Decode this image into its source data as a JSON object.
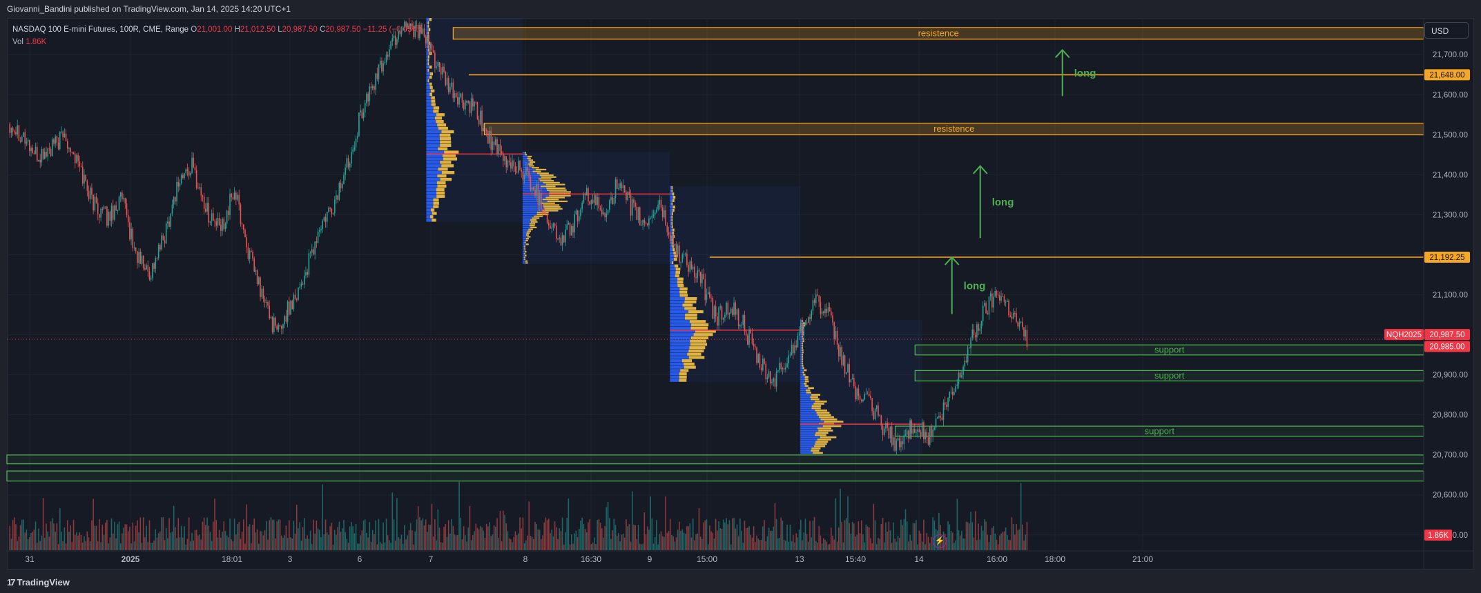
{
  "header": {
    "published_text": "Giovanni_Bandini published on TradingView.com, Jan 14, 2025 14:20 UTC+1"
  },
  "legend": {
    "symbol_title": "NASDAQ 100 E-mini Futures, 100R, CME, Range",
    "open_label": "O",
    "open_value": "21,001.00",
    "high_label": "H",
    "high_value": "21,012.50",
    "low_label": "L",
    "low_value": "20,987.50",
    "close_label": "C",
    "close_value": "20,987.50",
    "change_text": "−11.25 (−0.05%)",
    "vol_label": "Vol",
    "vol_value": "1.86K"
  },
  "price_axis": {
    "currency_button": "USD",
    "ticks": [
      "21,700.00",
      "21,600.00",
      "21,500.00",
      "21,400.00",
      "21,300.00",
      "21,200.00",
      "21,100.00",
      "21,000.00",
      "20,900.00",
      "20,800.00",
      "20,700.00",
      "20,600.00",
      "20,500.00"
    ],
    "badges": [
      {
        "text": "21,648.00",
        "price": 21648,
        "color": "#f5a623",
        "text_color": "#131722"
      },
      {
        "text": "21,192.25",
        "price": 21192.25,
        "color": "#f5a623",
        "text_color": "#131722"
      },
      {
        "text": "NQH2025",
        "price": 20999,
        "color": "#f23645",
        "text_color": "#ffffff",
        "offset_left": true
      },
      {
        "text": "20,987.50",
        "price": 20999,
        "color": "#f23645",
        "text_color": "#ffffff"
      },
      {
        "text": "20,985.00",
        "price": 20969,
        "color": "#f23645",
        "text_color": "#ffffff"
      }
    ],
    "volume_badge": "1.86K"
  },
  "time_axis": {
    "labels": [
      "31",
      "2025",
      "18:01",
      "3",
      "6",
      "7",
      "8",
      "16:30",
      "9",
      "15:00",
      "13",
      "15:40",
      "14",
      "16:00",
      "18:00",
      "21:00"
    ]
  },
  "footer": {
    "brand": "TradingView",
    "brand_mark": "17"
  },
  "colors": {
    "up": "#26a69a",
    "down": "#ef5350",
    "resistance": "#f5a623",
    "support": "#4caf50",
    "profile_blue": "#2962ff",
    "profile_yellow": "#f5c242",
    "poc": "#f23645",
    "arrow": "#4caf50"
  },
  "chart_data": {
    "type": "candlestick",
    "instrument": "NASDAQ 100 E-mini Futures, 100R, CME, Range",
    "y_range": [
      20460,
      21790
    ],
    "price_ticks": [
      21700,
      21600,
      21500,
      21400,
      21300,
      21200,
      21100,
      21000,
      20900,
      20800,
      20700,
      20600,
      20500
    ],
    "last_price": 20987.5,
    "price_path": [
      [
        0,
        21530
      ],
      [
        0.01,
        21500
      ],
      [
        0.02,
        21440
      ],
      [
        0.03,
        21460
      ],
      [
        0.04,
        21500
      ],
      [
        0.05,
        21420
      ],
      [
        0.06,
        21330
      ],
      [
        0.07,
        21290
      ],
      [
        0.08,
        21340
      ],
      [
        0.09,
        21200
      ],
      [
        0.1,
        21150
      ],
      [
        0.11,
        21240
      ],
      [
        0.12,
        21380
      ],
      [
        0.13,
        21420
      ],
      [
        0.14,
        21310
      ],
      [
        0.15,
        21260
      ],
      [
        0.16,
        21360
      ],
      [
        0.17,
        21200
      ],
      [
        0.18,
        21090
      ],
      [
        0.19,
        21000
      ],
      [
        0.2,
        21080
      ],
      [
        0.21,
        21150
      ],
      [
        0.22,
        21260
      ],
      [
        0.23,
        21320
      ],
      [
        0.24,
        21430
      ],
      [
        0.25,
        21560
      ],
      [
        0.26,
        21640
      ],
      [
        0.27,
        21720
      ],
      [
        0.28,
        21780
      ],
      [
        0.29,
        21760
      ],
      [
        0.3,
        21700
      ],
      [
        0.31,
        21620
      ],
      [
        0.32,
        21580
      ],
      [
        0.33,
        21560
      ],
      [
        0.34,
        21490
      ],
      [
        0.35,
        21430
      ],
      [
        0.36,
        21420
      ],
      [
        0.37,
        21380
      ],
      [
        0.38,
        21300
      ],
      [
        0.39,
        21230
      ],
      [
        0.4,
        21280
      ],
      [
        0.41,
        21350
      ],
      [
        0.42,
        21300
      ],
      [
        0.43,
        21370
      ],
      [
        0.44,
        21320
      ],
      [
        0.45,
        21270
      ],
      [
        0.46,
        21330
      ],
      [
        0.47,
        21220
      ],
      [
        0.48,
        21180
      ],
      [
        0.49,
        21130
      ],
      [
        0.5,
        21040
      ],
      [
        0.51,
        21070
      ],
      [
        0.52,
        21020
      ],
      [
        0.53,
        20930
      ],
      [
        0.54,
        20880
      ],
      [
        0.55,
        20930
      ],
      [
        0.56,
        21010
      ],
      [
        0.57,
        21090
      ],
      [
        0.58,
        21040
      ],
      [
        0.59,
        20930
      ],
      [
        0.6,
        20850
      ],
      [
        0.61,
        20820
      ],
      [
        0.62,
        20760
      ],
      [
        0.63,
        20720
      ],
      [
        0.64,
        20780
      ],
      [
        0.65,
        20740
      ],
      [
        0.66,
        20800
      ],
      [
        0.67,
        20870
      ],
      [
        0.68,
        20980
      ],
      [
        0.69,
        21060
      ],
      [
        0.7,
        21110
      ],
      [
        0.71,
        21050
      ],
      [
        0.72,
        20987
      ]
    ],
    "resistance_zones": [
      {
        "label": "resistence",
        "top": 21766,
        "bottom": 21737,
        "x_start": 0.315
      },
      {
        "label": "resistence",
        "top": 21527,
        "bottom": 21498,
        "x_start": 0.337
      }
    ],
    "resistance_lines": [
      {
        "price": 21648,
        "x_start": 0.326
      },
      {
        "price": 21192.25,
        "x_start": 0.496
      }
    ],
    "support_zones": [
      {
        "label": "support",
        "top": 20973,
        "bottom": 20948,
        "x_start": 0.641
      },
      {
        "label": "support",
        "top": 20909,
        "bottom": 20883,
        "x_start": 0.641
      },
      {
        "label": "support",
        "top": 20770,
        "bottom": 20745,
        "x_start": 0.627
      },
      {
        "label": "",
        "top": 20698,
        "bottom": 20676,
        "x_start": 0
      },
      {
        "label": "",
        "top": 20658,
        "bottom": 20633,
        "x_start": 0
      }
    ],
    "annotations": [
      {
        "text": "long",
        "x": 0.745,
        "from": 21595,
        "to": 21710
      },
      {
        "text": "long",
        "x": 0.687,
        "from": 21240,
        "to": 21420
      },
      {
        "text": "long",
        "x": 0.667,
        "from": 21050,
        "to": 21192
      }
    ],
    "volume_profiles": [
      {
        "x_start": 0.296,
        "x_end": 0.364,
        "top": 21790,
        "bottom": 21280,
        "poc": 21450
      },
      {
        "x_start": 0.364,
        "x_end": 0.468,
        "top": 21455,
        "bottom": 21175,
        "poc": 21350
      },
      {
        "x_start": 0.468,
        "x_end": 0.56,
        "top": 21370,
        "bottom": 20880,
        "poc": 21010
      },
      {
        "x_start": 0.56,
        "x_end": 0.646,
        "top": 21035,
        "bottom": 20700,
        "poc": 20775
      }
    ],
    "volume_label": "Vol 1.86K"
  }
}
